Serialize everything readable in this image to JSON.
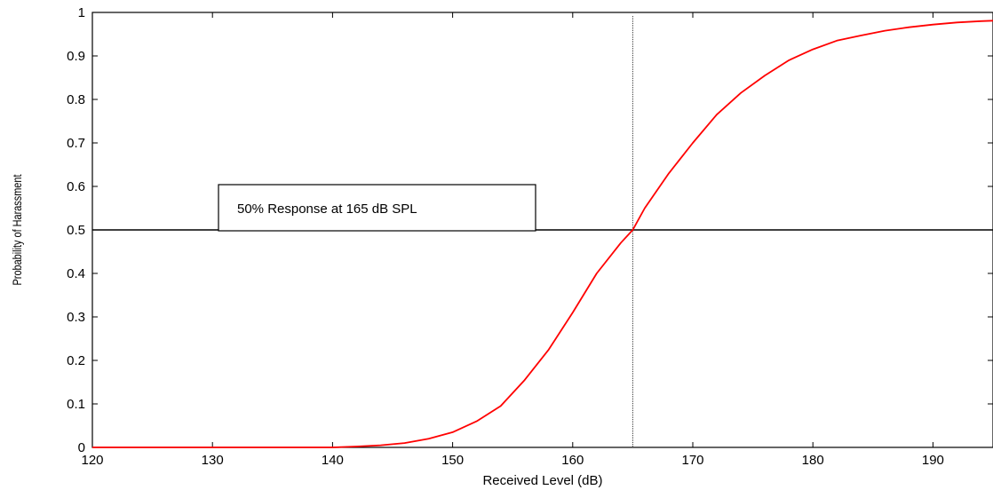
{
  "chart_data": {
    "type": "line",
    "title": "",
    "xlabel": "Received Level (dB)",
    "ylabel": "Probability of Harassment",
    "xlim": [
      120,
      195
    ],
    "ylim": [
      0,
      1
    ],
    "x_ticks": [
      120,
      130,
      140,
      150,
      160,
      170,
      180,
      190
    ],
    "y_ticks": [
      0,
      0.1,
      0.2,
      0.3,
      0.4,
      0.5,
      0.6,
      0.7,
      0.8,
      0.9,
      1
    ],
    "grid": false,
    "line_color": "#ff0000",
    "series": [
      {
        "x": [
          120,
          130,
          135,
          140,
          142,
          144,
          146,
          148,
          150,
          152,
          154,
          156,
          158,
          160,
          162,
          164,
          165,
          166,
          168,
          170,
          172,
          174,
          176,
          178,
          180,
          182,
          184,
          186,
          188,
          190,
          192,
          194,
          195
        ],
        "values": [
          0,
          0,
          0,
          0,
          0.002,
          0.005,
          0.01,
          0.02,
          0.035,
          0.06,
          0.095,
          0.155,
          0.225,
          0.31,
          0.4,
          0.47,
          0.5,
          0.55,
          0.63,
          0.7,
          0.765,
          0.815,
          0.855,
          0.89,
          0.915,
          0.935,
          0.947,
          0.958,
          0.966,
          0.972,
          0.977,
          0.98,
          0.981
        ]
      }
    ],
    "reference_lines": {
      "vertical_x": 165,
      "horizontal_y": 0.5
    },
    "annotation": {
      "text": "50% Response at 165 dB SPL"
    }
  }
}
